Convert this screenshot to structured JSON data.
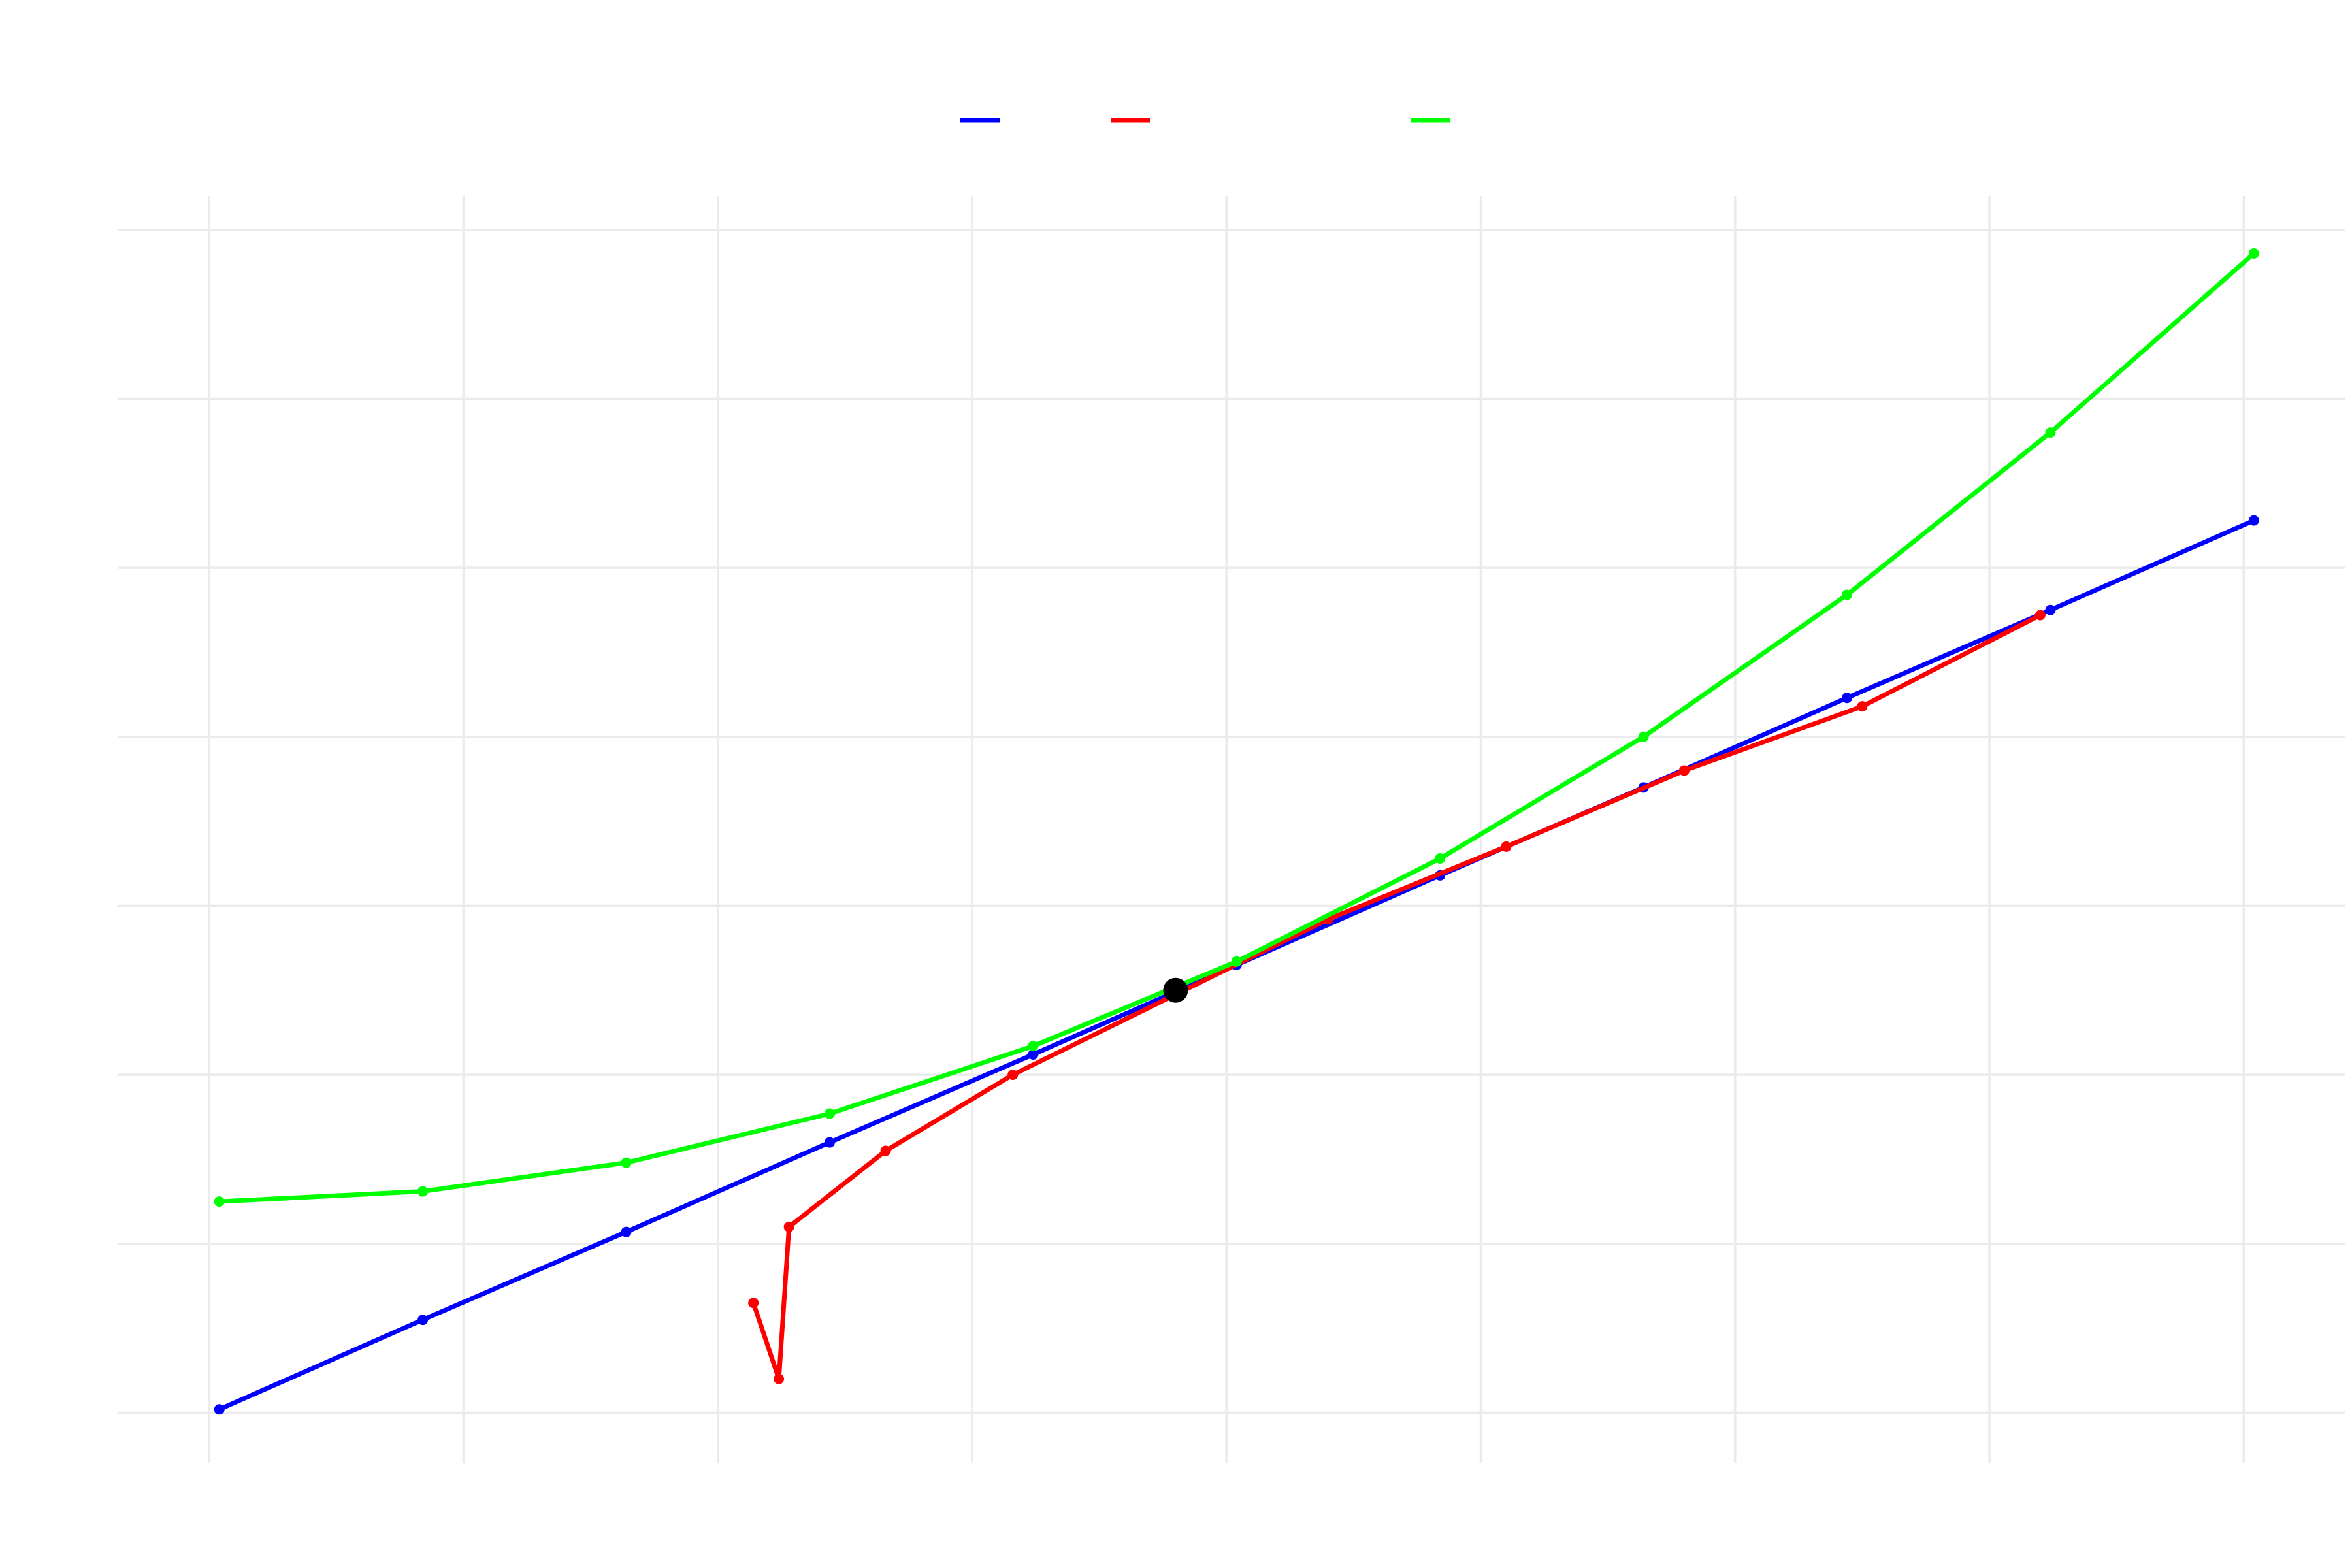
{
  "chart_data": {
    "type": "line",
    "title": "",
    "xlabel": "",
    "ylabel": "",
    "xlim": [
      -0.18,
      4.2
    ],
    "ylim": [
      -0.3,
      7.2
    ],
    "x_gridlines": [
      0,
      0.5,
      1,
      1.5,
      2,
      2.5,
      3,
      3.5,
      4
    ],
    "y_gridlines": [
      0,
      1,
      2,
      3,
      4,
      5,
      6,
      7
    ],
    "grid": true,
    "legend": "top-center",
    "series": [
      {
        "color": "#0000ff",
        "points": [
          [
            0.02,
            0.02
          ],
          [
            0.42,
            0.55
          ],
          [
            0.82,
            1.07
          ],
          [
            1.22,
            1.6
          ],
          [
            1.62,
            2.12
          ],
          [
            2.02,
            2.65
          ],
          [
            2.42,
            3.18
          ],
          [
            2.82,
            3.7
          ],
          [
            3.22,
            4.23
          ],
          [
            3.62,
            4.75
          ],
          [
            4.02,
            5.28
          ]
        ]
      },
      {
        "color": "#ff0000",
        "points": [
          [
            1.07,
            0.65
          ],
          [
            1.12,
            0.2
          ],
          [
            1.14,
            1.1
          ],
          [
            1.33,
            1.55
          ],
          [
            1.58,
            2.0
          ],
          [
            2.2,
            2.92
          ],
          [
            2.55,
            3.35
          ],
          [
            2.9,
            3.8
          ],
          [
            3.25,
            4.18
          ],
          [
            3.6,
            4.72
          ]
        ]
      },
      {
        "color": "#00ff00",
        "points": [
          [
            0.02,
            1.25
          ],
          [
            0.42,
            1.31
          ],
          [
            0.82,
            1.48
          ],
          [
            1.22,
            1.77
          ],
          [
            1.62,
            2.17
          ],
          [
            2.02,
            2.67
          ],
          [
            2.42,
            3.28
          ],
          [
            2.82,
            4.0
          ],
          [
            3.22,
            4.84
          ],
          [
            3.62,
            5.8
          ],
          [
            4.02,
            6.86
          ]
        ]
      }
    ],
    "highlight_point": {
      "x": 1.9,
      "y": 2.5,
      "color": "#000000"
    }
  }
}
